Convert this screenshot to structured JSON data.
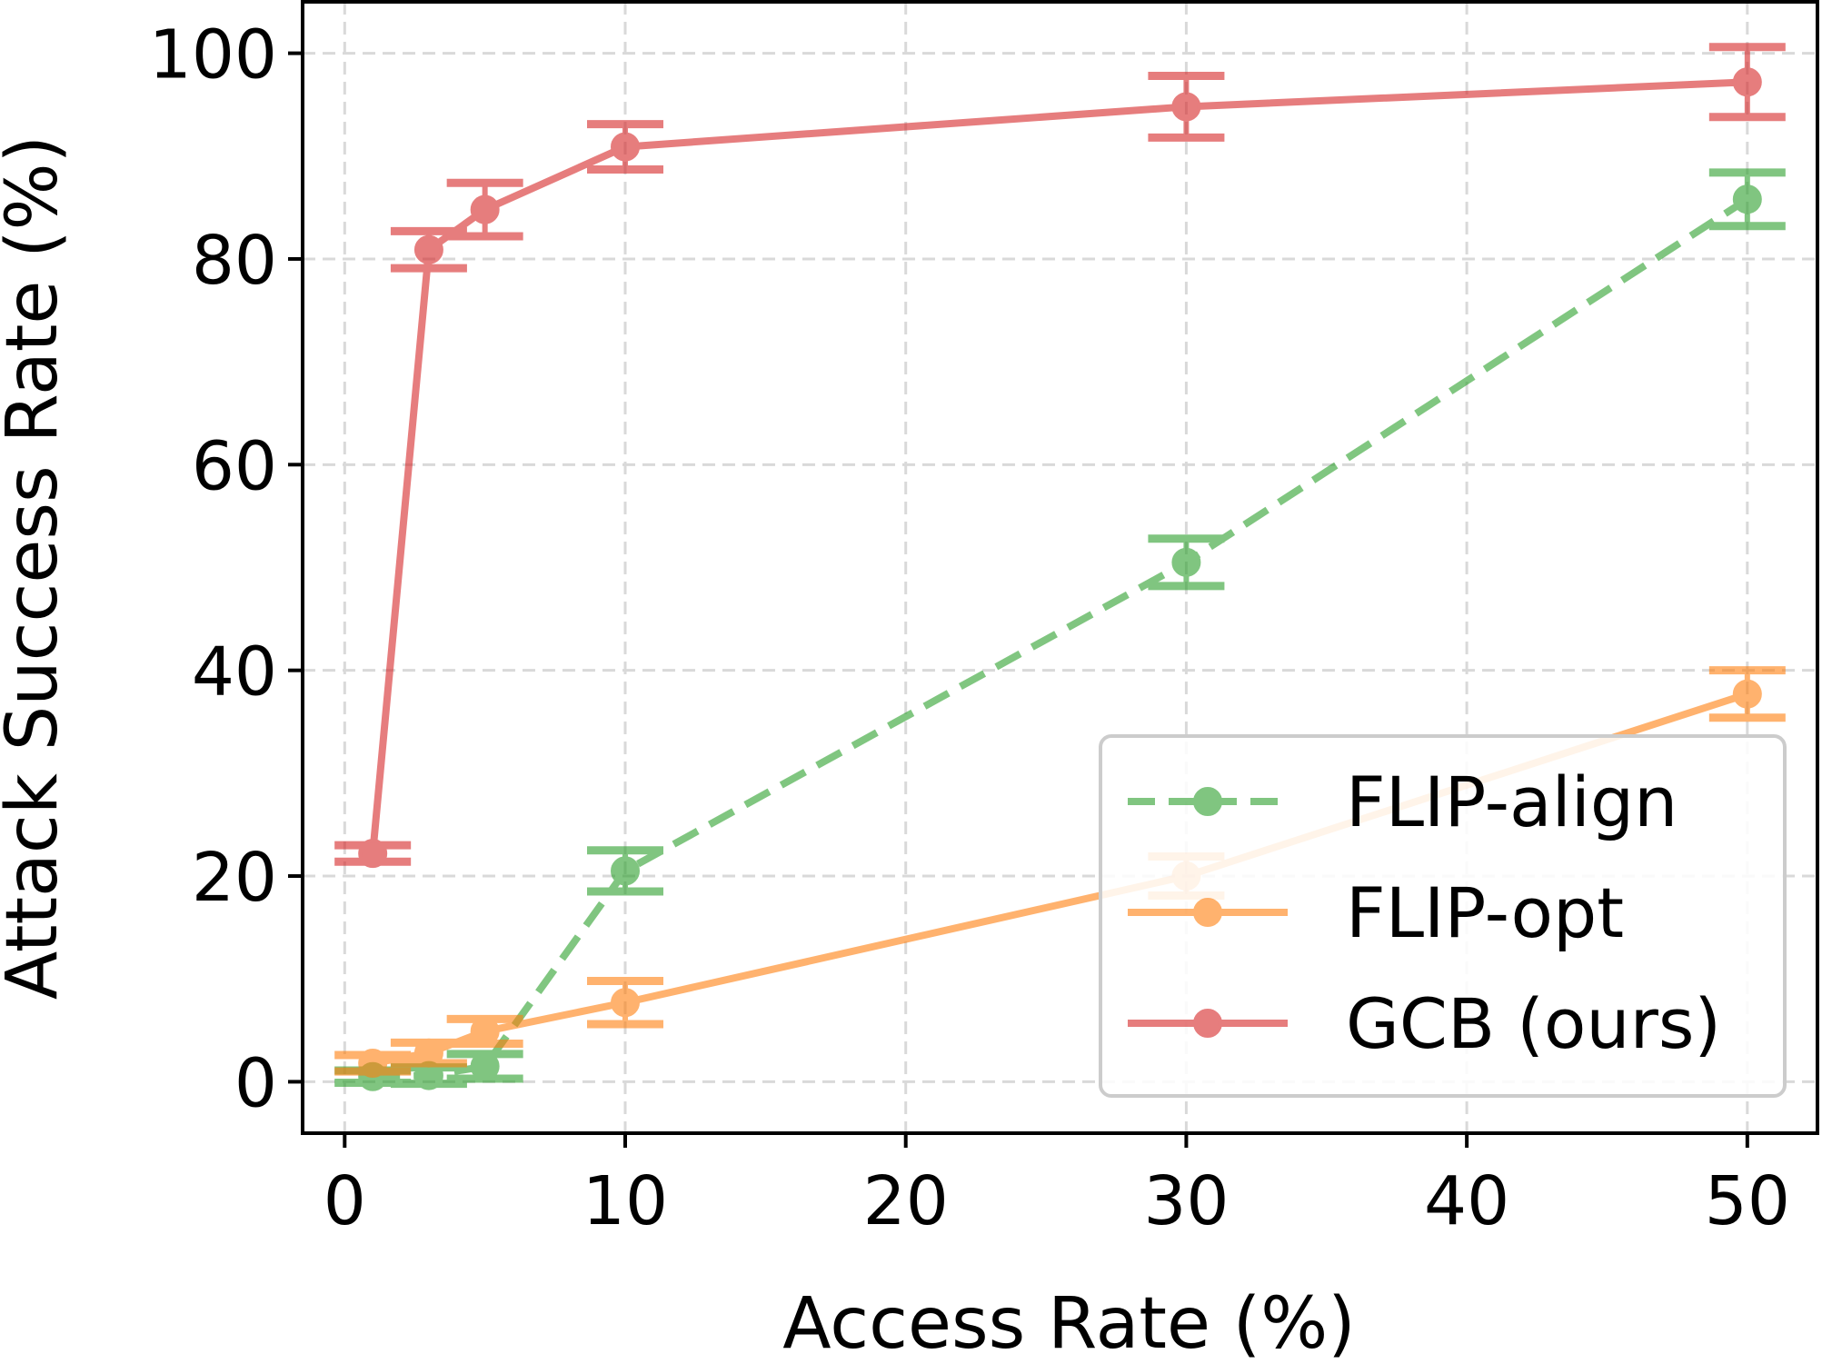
{
  "chart_data": {
    "type": "line",
    "title": "",
    "xlabel": "Access Rate (%)",
    "ylabel": "Attack Success Rate (%)",
    "xlim": [
      -1.5,
      52.5
    ],
    "ylim": [
      -5,
      105
    ],
    "xticks": [
      "0",
      "10",
      "20",
      "30",
      "40",
      "50"
    ],
    "yticks": [
      "0",
      "20",
      "40",
      "60",
      "80",
      "100"
    ],
    "grid": true,
    "legend_position": "lower-right",
    "series": [
      {
        "name": "FLIP-align",
        "color": "#2ca02c",
        "linestyle": "dashed",
        "x": [
          1,
          3,
          5,
          10,
          30,
          50
        ],
        "y": [
          0.5,
          0.6,
          1.5,
          20.5,
          50.5,
          85.8
        ],
        "yerr": [
          0.6,
          0.8,
          1.2,
          2.0,
          2.3,
          2.6
        ]
      },
      {
        "name": "FLIP-opt",
        "color": "#ff7f0e",
        "linestyle": "solid",
        "x": [
          1,
          3,
          5,
          10,
          30,
          50
        ],
        "y": [
          1.8,
          2.8,
          4.9,
          7.7,
          20.0,
          37.7
        ],
        "yerr": [
          0.8,
          1.0,
          1.2,
          2.1,
          1.9,
          2.3
        ]
      },
      {
        "name": "GCB (ours)",
        "color": "#d62728",
        "linestyle": "solid",
        "x": [
          1,
          3,
          5,
          10,
          30,
          50
        ],
        "y": [
          22.2,
          80.9,
          84.8,
          90.9,
          94.8,
          97.2
        ],
        "yerr": [
          0.8,
          1.8,
          2.6,
          2.2,
          3.0,
          3.4
        ]
      }
    ]
  }
}
